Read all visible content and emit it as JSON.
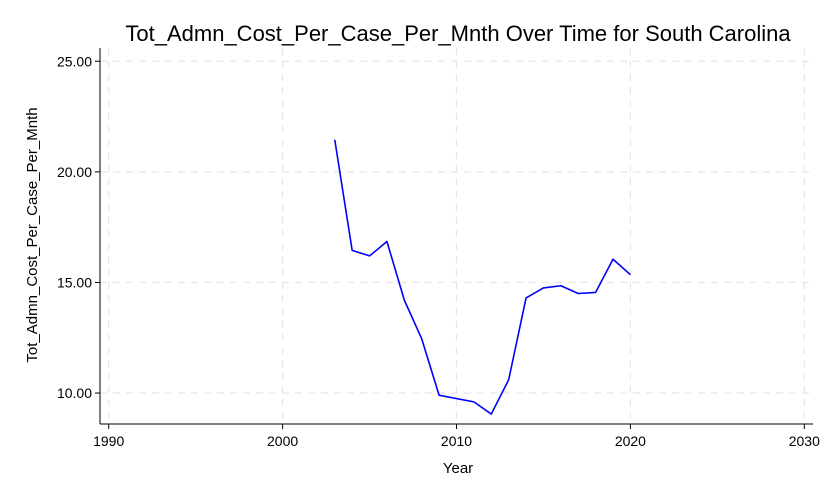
{
  "chart_data": {
    "type": "line",
    "title": "Tot_Admn_Cost_Per_Case_Per_Mnth Over Time for South Carolina",
    "xlabel": "Year",
    "ylabel": "Tot_Admn_Cost_Per_Case_Per_Mnth",
    "xlim": [
      1989.5,
      2030.5
    ],
    "ylim": [
      8.6,
      25.6
    ],
    "xticks": [
      1990,
      2000,
      2010,
      2020,
      2030
    ],
    "xtick_labels": [
      "1990",
      "2000",
      "2010",
      "2020",
      "2030"
    ],
    "yticks": [
      10,
      15,
      20,
      25
    ],
    "ytick_labels": [
      "10.00",
      "15.00",
      "20.00",
      "25.00"
    ],
    "grid": true,
    "line_color": "#0000ff",
    "series": [
      {
        "x": [
          2003,
          2004,
          2005,
          2006,
          2007,
          2008,
          2009,
          2010,
          2011,
          2012,
          2013,
          2014,
          2015,
          2016,
          2017,
          2018,
          2019,
          2020
        ],
        "values": [
          21.45,
          16.45,
          16.2,
          16.85,
          14.2,
          12.45,
          9.9,
          9.75,
          9.6,
          9.05,
          10.6,
          14.3,
          14.75,
          14.85,
          14.5,
          14.55,
          16.05,
          15.35
        ]
      }
    ]
  }
}
